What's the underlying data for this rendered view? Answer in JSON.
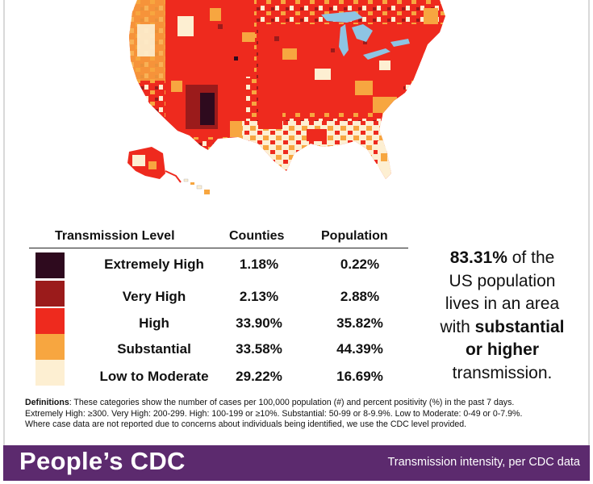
{
  "colors": {
    "extremely_high": "#2e0a1e",
    "very_high": "#9b1b1b",
    "high": "#ee2a1e",
    "substantial": "#f7a640",
    "low_to_moderate": "#fdefd2",
    "footer_bg": "#5c2a6e",
    "lakes": "#8ec4e3"
  },
  "table": {
    "headers": {
      "level": "Transmission Level",
      "counties": "Counties",
      "population": "Population"
    },
    "rows": [
      {
        "level": "Extremely High",
        "counties": "1.18%",
        "population": "0.22%",
        "color": "#2e0a1e"
      },
      {
        "level": "Very High",
        "counties": "2.13%",
        "population": "2.88%",
        "color": "#9b1b1b"
      },
      {
        "level": "High",
        "counties": "33.90%",
        "population": "35.82%",
        "color": "#ee2a1e"
      },
      {
        "level": "Substantial",
        "counties": "33.58%",
        "population": "44.39%",
        "color": "#f7a640"
      },
      {
        "level": "Low to Moderate",
        "counties": "29.22%",
        "population": "16.69%",
        "color": "#fdefd2"
      }
    ]
  },
  "summary": {
    "percent": "83.31%",
    "line1_rest": " of the",
    "line2": "US population",
    "line3": "lives in an area",
    "line4_pre": "with ",
    "line4_bold": "substantial",
    "line5_bold": "or higher",
    "line6": "transmission."
  },
  "definitions": {
    "label": "Definitions",
    "line1": ": These categories show the number of cases per 100,000 population (#) and percent positivity (%) in the past 7 days.",
    "line2": "Extremely High: ≥300. Very High: 200-299. High: 100-199 or ≥10%. Substantial: 50-99 or 8-9.9%. Low to Moderate: 0-49 or 0-7.9%.",
    "line3": "Where case data are not reported due to concerns about individuals being identified, we use the CDC level provided."
  },
  "footer": {
    "brand": "People’s CDC",
    "caption": "Transmission intensity, per CDC data"
  }
}
